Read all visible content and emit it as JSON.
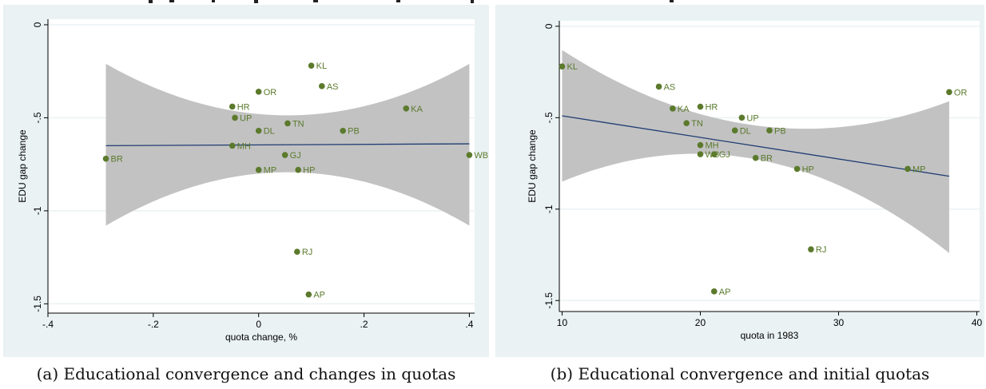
{
  "chart_data": [
    {
      "type": "scatter",
      "caption": "(a) Educational convergence and changes in quotas",
      "xlabel": "quota change, %",
      "ylabel": "EDU gap change",
      "xlim": [
        -0.4,
        0.41
      ],
      "ylim": [
        -1.55,
        0.03
      ],
      "xticks": [
        -0.4,
        -0.2,
        0,
        0.2,
        0.4
      ],
      "xtick_labels": [
        "-.4",
        "-.2",
        "0",
        ".2",
        ".4"
      ],
      "yticks": [
        0,
        -0.5,
        -1,
        -1.5
      ],
      "ytick_labels": [
        "0",
        "-.5",
        "-1",
        "-1.5"
      ],
      "grid": true,
      "fit_line": {
        "x": [
          -0.29,
          0.4
        ],
        "y": [
          -0.65,
          -0.64
        ]
      },
      "ci_band": {
        "x": [
          -0.29,
          0.0,
          0.4
        ],
        "upper": [
          -0.21,
          -0.48,
          -0.21
        ],
        "lower": [
          -1.08,
          -0.8,
          -1.08
        ]
      },
      "colors": {
        "point": "#5b7a2c",
        "fit": "#1f3d73",
        "band": "#c2c2c2",
        "background": "#eaf2f3",
        "plot_bg": "#ffffff"
      },
      "points": [
        {
          "label": "KL",
          "x": 0.1,
          "y": -0.22
        },
        {
          "label": "AS",
          "x": 0.12,
          "y": -0.33
        },
        {
          "label": "OR",
          "x": 0.0,
          "y": -0.36
        },
        {
          "label": "HR",
          "x": -0.05,
          "y": -0.44
        },
        {
          "label": "KA",
          "x": 0.28,
          "y": -0.45
        },
        {
          "label": "UP",
          "x": -0.045,
          "y": -0.5
        },
        {
          "label": "TN",
          "x": 0.055,
          "y": -0.53
        },
        {
          "label": "DL",
          "x": 0.0,
          "y": -0.57
        },
        {
          "label": "PB",
          "x": 0.16,
          "y": -0.57
        },
        {
          "label": "MH",
          "x": -0.05,
          "y": -0.65
        },
        {
          "label": "GJ",
          "x": 0.05,
          "y": -0.7
        },
        {
          "label": "WB",
          "x": 0.4,
          "y": -0.7
        },
        {
          "label": "BR",
          "x": -0.29,
          "y": -0.72
        },
        {
          "label": "MP",
          "x": 0.0,
          "y": -0.78
        },
        {
          "label": "HP",
          "x": 0.075,
          "y": -0.78
        },
        {
          "label": "RJ",
          "x": 0.073,
          "y": -1.22
        },
        {
          "label": "AP",
          "x": 0.095,
          "y": -1.45
        }
      ]
    },
    {
      "type": "scatter",
      "caption": "(b) Educational convergence and initial quotas",
      "xlabel": "quota in 1983",
      "ylabel": "EDU gap change",
      "xlim": [
        9.8,
        40.2
      ],
      "ylim": [
        -1.56,
        0.03
      ],
      "xticks": [
        10,
        20,
        30,
        40
      ],
      "xtick_labels": [
        "10",
        "20",
        "30",
        "40"
      ],
      "yticks": [
        0,
        -0.5,
        -1,
        -1.5
      ],
      "ytick_labels": [
        "0",
        "-.5",
        "-1",
        "-1.5"
      ],
      "grid": true,
      "fit_line": {
        "x": [
          10,
          38
        ],
        "y": [
          -0.49,
          -0.82
        ]
      },
      "ci_band": {
        "x": [
          10,
          21,
          38
        ],
        "upper": [
          -0.13,
          -0.5,
          -0.41
        ],
        "lower": [
          -0.85,
          -0.7,
          -1.24
        ]
      },
      "colors": {
        "point": "#5b7a2c",
        "fit": "#1f3d73",
        "band": "#c2c2c2",
        "background": "#eaf2f3",
        "plot_bg": "#ffffff"
      },
      "points": [
        {
          "label": "KL",
          "x": 10,
          "y": -0.22
        },
        {
          "label": "AS",
          "x": 17,
          "y": -0.33
        },
        {
          "label": "OR",
          "x": 38,
          "y": -0.36
        },
        {
          "label": "KA",
          "x": 18,
          "y": -0.45
        },
        {
          "label": "HR",
          "x": 20,
          "y": -0.44
        },
        {
          "label": "UP",
          "x": 23,
          "y": -0.5
        },
        {
          "label": "TN",
          "x": 19,
          "y": -0.53
        },
        {
          "label": "DL",
          "x": 22.5,
          "y": -0.57
        },
        {
          "label": "PB",
          "x": 25,
          "y": -0.57
        },
        {
          "label": "MH",
          "x": 20,
          "y": -0.65
        },
        {
          "label": "WB",
          "x": 20,
          "y": -0.7
        },
        {
          "label": "GJ",
          "x": 21,
          "y": -0.7
        },
        {
          "label": "BR",
          "x": 24,
          "y": -0.72
        },
        {
          "label": "HP",
          "x": 27,
          "y": -0.78
        },
        {
          "label": "MP",
          "x": 35,
          "y": -0.78
        },
        {
          "label": "RJ",
          "x": 28,
          "y": -1.22
        },
        {
          "label": "AP",
          "x": 21,
          "y": -1.45
        }
      ]
    }
  ]
}
